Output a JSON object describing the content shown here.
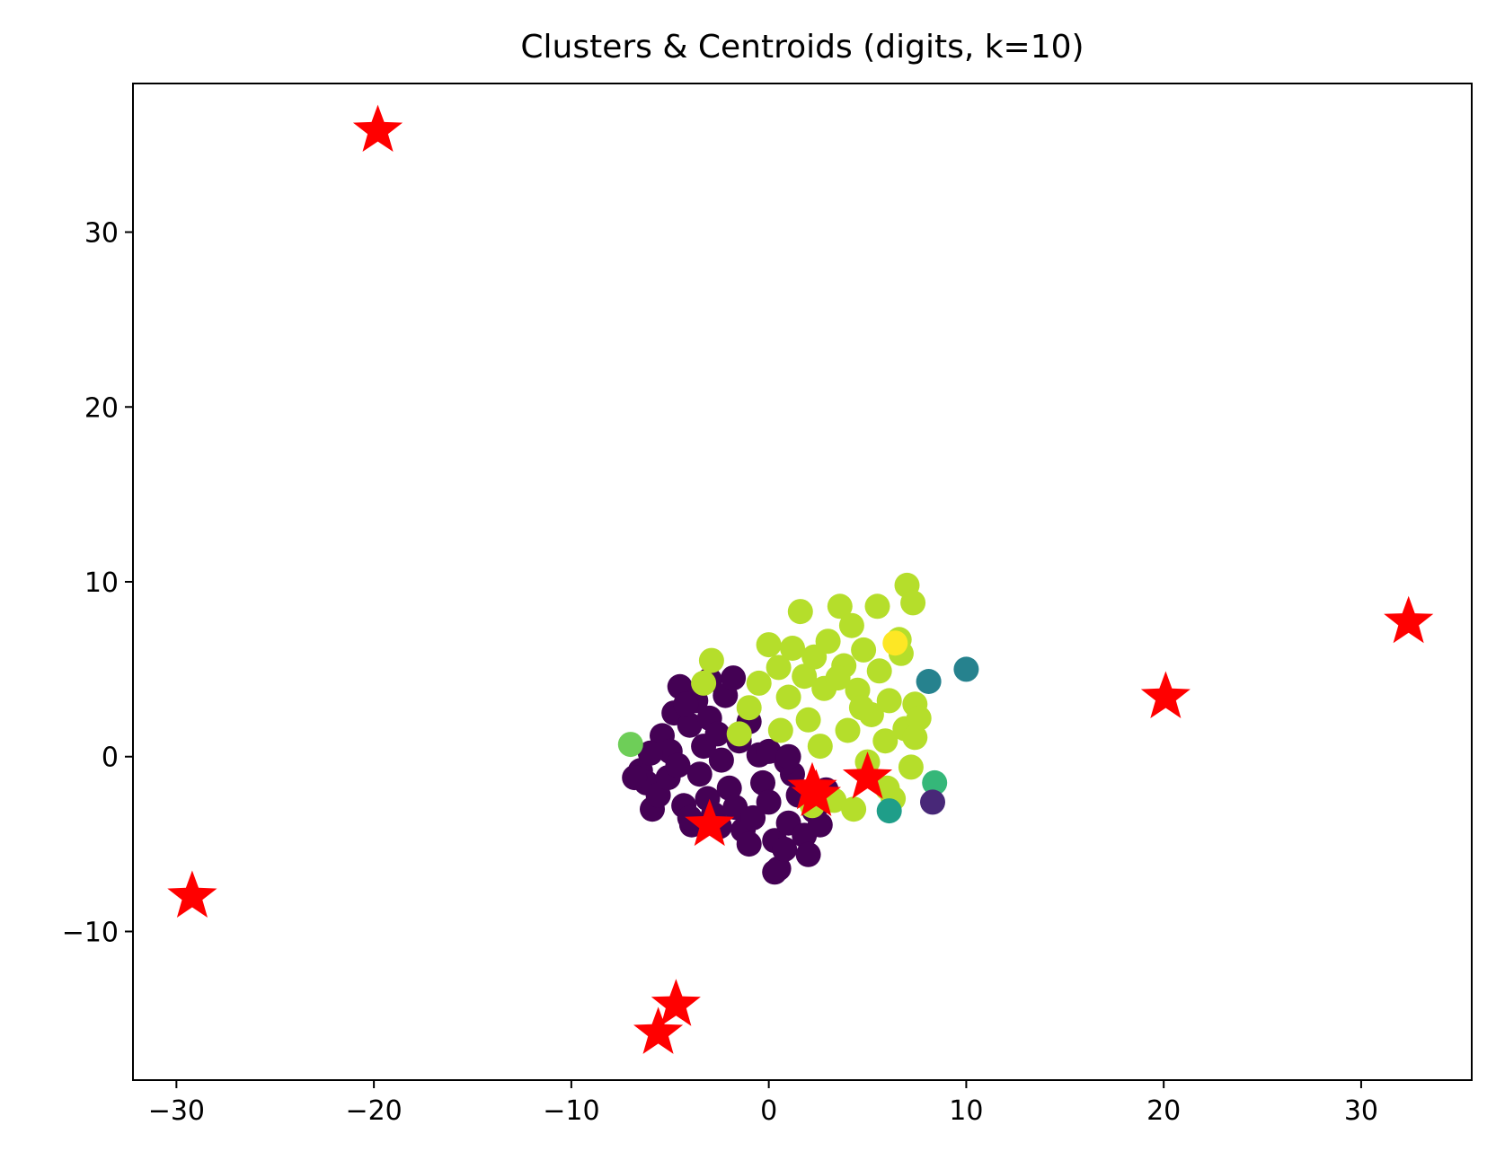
{
  "chart_data": {
    "type": "scatter",
    "title": "Clusters & Centroids (digits, k=10)",
    "xlabel": "",
    "ylabel": "",
    "xlim": [
      -32.2,
      35.6
    ],
    "ylim": [
      -18.5,
      38.5
    ],
    "xticks": [
      -30,
      -20,
      -10,
      0,
      10,
      20,
      30
    ],
    "yticks": [
      -10,
      0,
      10,
      20,
      30
    ],
    "xtick_labels": [
      "−30",
      "−20",
      "−10",
      "0",
      "10",
      "20",
      "30"
    ],
    "ytick_labels": [
      "−10",
      "0",
      "10",
      "20",
      "30"
    ],
    "grid": false,
    "legend": "none",
    "colors": {
      "c0": "#440154",
      "c1": "#482878",
      "c4": "#26828e",
      "c5": "#1f9e89",
      "c6": "#35b779",
      "c7": "#6ece58",
      "c8": "#b5de2b",
      "c9": "#fde725",
      "centroid": "#ff0000"
    },
    "clusters": [
      {
        "color_key": "c0",
        "points": [
          [
            -6.5,
            -0.8
          ],
          [
            -6.2,
            -1.5
          ],
          [
            -5.9,
            -3.0
          ],
          [
            -5.6,
            -2.2
          ],
          [
            -5.4,
            1.2
          ],
          [
            -5.0,
            0.3
          ],
          [
            -5.1,
            -1.2
          ],
          [
            -4.8,
            2.5
          ],
          [
            -4.6,
            -0.5
          ],
          [
            -4.5,
            4.0
          ],
          [
            -4.3,
            -2.8
          ],
          [
            -4.0,
            1.8
          ],
          [
            -3.9,
            -3.9
          ],
          [
            -3.7,
            3.2
          ],
          [
            -3.5,
            -1.0
          ],
          [
            -3.3,
            0.6
          ],
          [
            -3.1,
            -2.4
          ],
          [
            -3.0,
            2.2
          ],
          [
            -2.8,
            -3.3
          ],
          [
            -2.6,
            1.3
          ],
          [
            -2.4,
            -0.2
          ],
          [
            -2.2,
            3.5
          ],
          [
            -2.0,
            -1.8
          ],
          [
            -1.8,
            4.5
          ],
          [
            -1.7,
            -2.9
          ],
          [
            -1.5,
            0.9
          ],
          [
            -1.3,
            -4.2
          ],
          [
            -1.0,
            2.0
          ],
          [
            -0.8,
            -3.5
          ],
          [
            -0.5,
            0.1
          ],
          [
            -0.3,
            -1.5
          ],
          [
            0.0,
            -2.6
          ],
          [
            0.3,
            -4.8
          ],
          [
            0.5,
            -6.4
          ],
          [
            0.3,
            -6.6
          ],
          [
            0.8,
            -5.3
          ],
          [
            1.0,
            -3.8
          ],
          [
            1.2,
            -1.0
          ],
          [
            1.5,
            -2.2
          ],
          [
            1.8,
            -4.5
          ],
          [
            2.0,
            -5.6
          ],
          [
            2.3,
            -3.1
          ],
          [
            2.6,
            -3.9
          ],
          [
            2.9,
            -1.9
          ],
          [
            0.9,
            -0.3
          ],
          [
            -6.8,
            -1.2
          ],
          [
            -6.0,
            0.2
          ],
          [
            -4.0,
            -3.5
          ],
          [
            -2.5,
            -4.0
          ],
          [
            -1.0,
            -5.0
          ],
          [
            0.0,
            0.3
          ],
          [
            1.0,
            0.0
          ],
          [
            -3.0,
            4.4
          ],
          [
            -4.2,
            3.0
          ]
        ]
      },
      {
        "color_key": "c8",
        "points": [
          [
            -1.5,
            1.3
          ],
          [
            -1.0,
            2.8
          ],
          [
            -0.5,
            4.2
          ],
          [
            0.0,
            6.4
          ],
          [
            0.5,
            5.1
          ],
          [
            1.0,
            3.4
          ],
          [
            1.2,
            6.2
          ],
          [
            1.6,
            8.3
          ],
          [
            1.8,
            4.6
          ],
          [
            2.0,
            2.1
          ],
          [
            2.3,
            5.7
          ],
          [
            2.6,
            0.6
          ],
          [
            2.8,
            3.9
          ],
          [
            3.0,
            6.6
          ],
          [
            3.3,
            -2.5
          ],
          [
            3.6,
            8.6
          ],
          [
            3.8,
            5.2
          ],
          [
            4.0,
            1.5
          ],
          [
            4.2,
            7.5
          ],
          [
            4.3,
            -3.0
          ],
          [
            4.5,
            3.8
          ],
          [
            4.8,
            6.1
          ],
          [
            5.0,
            -0.3
          ],
          [
            5.2,
            2.4
          ],
          [
            5.5,
            8.6
          ],
          [
            5.6,
            4.9
          ],
          [
            5.9,
            0.9
          ],
          [
            6.1,
            3.2
          ],
          [
            6.3,
            -2.4
          ],
          [
            6.6,
            6.7
          ],
          [
            6.7,
            5.9
          ],
          [
            6.9,
            1.6
          ],
          [
            7.0,
            9.8
          ],
          [
            7.2,
            -0.6
          ],
          [
            7.3,
            8.8
          ],
          [
            7.4,
            3.0
          ],
          [
            7.6,
            2.2
          ],
          [
            7.4,
            1.1
          ],
          [
            -2.9,
            5.5
          ],
          [
            -3.3,
            4.2
          ],
          [
            2.2,
            -2.8
          ],
          [
            0.6,
            1.5
          ],
          [
            3.5,
            4.5
          ],
          [
            4.7,
            2.8
          ],
          [
            6.0,
            -1.8
          ]
        ]
      },
      {
        "color_key": "c9",
        "points": [
          [
            6.4,
            6.5
          ]
        ]
      },
      {
        "color_key": "c4",
        "points": [
          [
            8.1,
            4.3
          ],
          [
            10.0,
            5.0
          ]
        ]
      },
      {
        "color_key": "c5",
        "points": [
          [
            6.1,
            -3.1
          ]
        ]
      },
      {
        "color_key": "c6",
        "points": [
          [
            8.4,
            -1.5
          ]
        ]
      },
      {
        "color_key": "c7",
        "points": [
          [
            -7.0,
            0.7
          ]
        ]
      },
      {
        "color_key": "c1",
        "points": [
          [
            8.3,
            -2.6
          ]
        ]
      }
    ],
    "centroids": [
      [
        -19.8,
        35.8
      ],
      [
        -29.2,
        -8.0
      ],
      [
        -4.7,
        -14.2
      ],
      [
        -5.6,
        -15.8
      ],
      [
        -3.0,
        -3.9
      ],
      [
        2.2,
        -1.8
      ],
      [
        2.4,
        -2.2
      ],
      [
        5.0,
        -1.2
      ],
      [
        20.1,
        3.4
      ],
      [
        32.4,
        7.7
      ]
    ]
  }
}
